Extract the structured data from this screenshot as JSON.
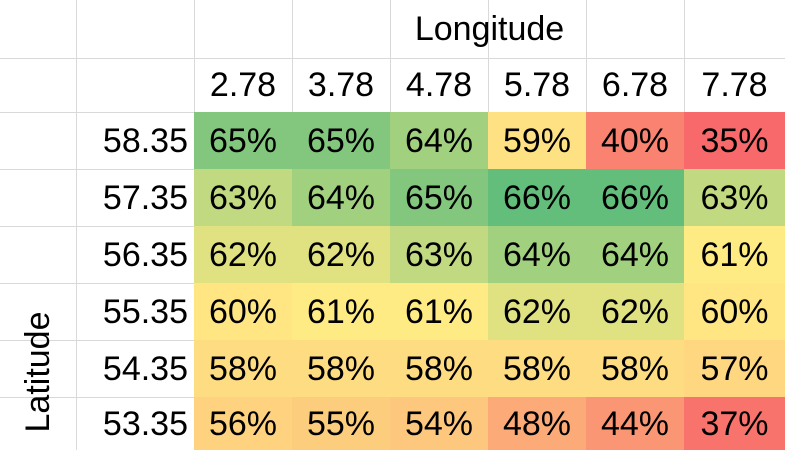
{
  "chart_data": {
    "type": "heatmap",
    "xlabel": "Longitude",
    "ylabel": "Latitude",
    "x": [
      "2.78",
      "3.78",
      "4.78",
      "5.78",
      "6.78",
      "7.78"
    ],
    "y": [
      "58.35",
      "57.35",
      "56.35",
      "55.35",
      "54.35",
      "53.35"
    ],
    "values": [
      [
        "65%",
        "65%",
        "64%",
        "59%",
        "40%",
        "35%"
      ],
      [
        "63%",
        "64%",
        "65%",
        "66%",
        "66%",
        "63%"
      ],
      [
        "62%",
        "62%",
        "63%",
        "64%",
        "64%",
        "61%"
      ],
      [
        "60%",
        "61%",
        "61%",
        "62%",
        "62%",
        "60%"
      ],
      [
        "58%",
        "58%",
        "58%",
        "58%",
        "58%",
        "57%"
      ],
      [
        "56%",
        "55%",
        "54%",
        "48%",
        "44%",
        "37%"
      ]
    ],
    "color_scale": {
      "low": "#f8696b",
      "mid": "#ffeb84",
      "high": "#63be7b"
    }
  }
}
